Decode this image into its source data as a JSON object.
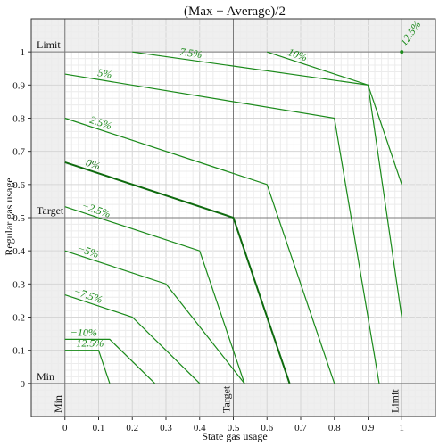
{
  "chart_data": {
    "type": "line",
    "title": "(Max + Average)/2",
    "xlabel": "State gas usage",
    "ylabel": "Regular gas usage",
    "xlim": [
      -0.1,
      1.1
    ],
    "ylim": [
      -0.1,
      1.1
    ],
    "x_ticks": [
      "0",
      "0.1",
      "0.2",
      "0.3",
      "0.4",
      "0.5",
      "0.6",
      "0.7",
      "0.8",
      "0.9",
      "1"
    ],
    "y_ticks": [
      "0",
      "0.1",
      "0.2",
      "0.3",
      "0.4",
      "0.5",
      "0.6",
      "0.7",
      "0.8",
      "0.9",
      "1"
    ],
    "grid": true,
    "reference_lines": {
      "x": [
        {
          "value": 0,
          "label": "Min"
        },
        {
          "value": 0.5,
          "label": "Target"
        },
        {
          "value": 1,
          "label": "Limit"
        }
      ],
      "y": [
        {
          "value": 0,
          "label": "Min"
        },
        {
          "value": 0.5,
          "label": "Target"
        },
        {
          "value": 1,
          "label": "Limit"
        }
      ]
    },
    "line_color": "#1a8a1a",
    "highlight_color": "#0e6a0e",
    "series": [
      {
        "name": "−12.5%",
        "x": [
          0,
          0.1,
          0.133
        ],
        "y": [
          0.1,
          0.1,
          0
        ]
      },
      {
        "name": "−10%",
        "x": [
          0,
          0.133,
          0.267
        ],
        "y": [
          0.133,
          0.133,
          0
        ]
      },
      {
        "name": "−7.5%",
        "x": [
          0,
          0.2,
          0.4
        ],
        "y": [
          0.267,
          0.2,
          0
        ]
      },
      {
        "name": "−5%",
        "x": [
          0,
          0.3,
          0.533
        ],
        "y": [
          0.4,
          0.3,
          0
        ]
      },
      {
        "name": "−2.5%",
        "x": [
          0,
          0.4,
          0.533
        ],
        "y": [
          0.533,
          0.4,
          0
        ]
      },
      {
        "name": "0%",
        "x": [
          0,
          0.5,
          0.667
        ],
        "y": [
          0.667,
          0.5,
          0
        ]
      },
      {
        "name": "2.5%",
        "x": [
          0,
          0.6,
          0.8
        ],
        "y": [
          0.8,
          0.6,
          0
        ]
      },
      {
        "name": "5%",
        "x": [
          0,
          0.8,
          0.933
        ],
        "y": [
          0.933,
          0.8,
          0
        ]
      },
      {
        "name": "7.5%",
        "x": [
          0.2,
          0.9,
          1
        ],
        "y": [
          1,
          0.9,
          0.2
        ]
      },
      {
        "name": "10%",
        "x": [
          0.6,
          0.9,
          1
        ],
        "y": [
          1,
          0.9,
          0.6
        ]
      },
      {
        "name": "12.5%",
        "x": [
          1
        ],
        "y": [
          1
        ]
      }
    ]
  }
}
